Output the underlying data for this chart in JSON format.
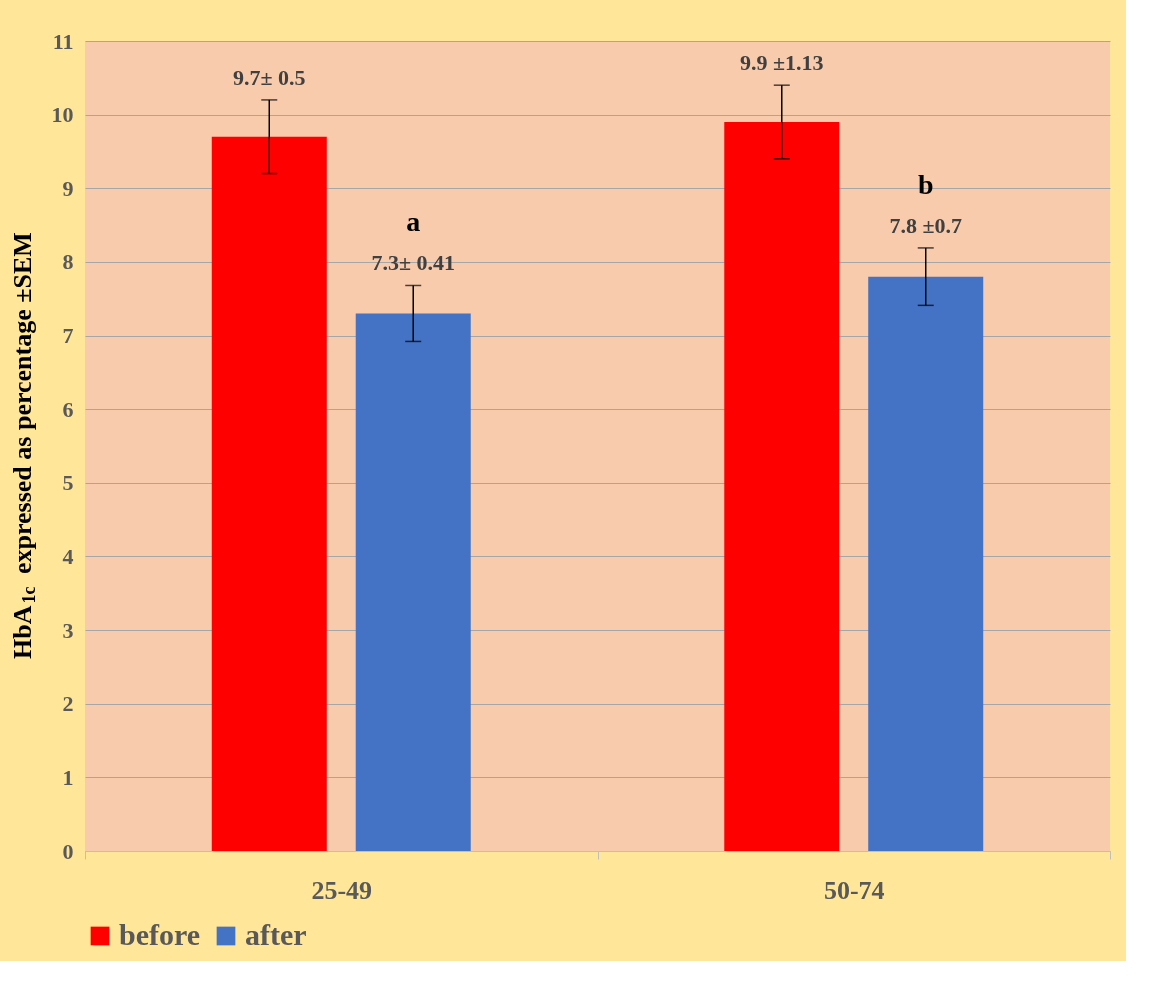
{
  "chart_data": {
    "type": "bar",
    "ylabel": "HbA$_{1c}$ expressed as percentage ±SEM",
    "categories": [
      "25-49",
      "50-74"
    ],
    "series": [
      {
        "name": "before",
        "color": "#ff0000",
        "values": [
          9.7,
          9.9
        ],
        "errors": [
          0.5,
          0.5
        ],
        "value_labels": [
          "9.7± 0.5",
          "9.9 ±1.13"
        ]
      },
      {
        "name": "after",
        "color": "#4472c4",
        "values": [
          7.3,
          7.8
        ],
        "errors": [
          0.38,
          0.39
        ],
        "value_labels": [
          "7.3± 0.41",
          "7.8 ±0.7"
        ]
      }
    ],
    "annotations": [
      "a",
      "b"
    ],
    "ylim": [
      0,
      11
    ],
    "yticks": [
      0,
      1,
      2,
      3,
      4,
      5,
      6,
      7,
      8,
      9,
      10,
      11
    ],
    "grid": "y",
    "legend": "bottom"
  }
}
